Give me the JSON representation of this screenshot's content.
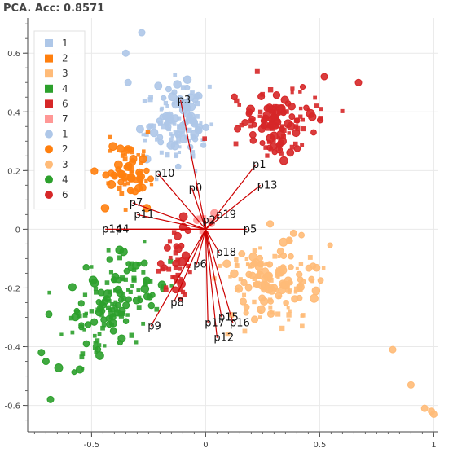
{
  "chart_data": {
    "type": "scatter",
    "title": "PCA. Acc: 0.8571",
    "xlabel": "",
    "ylabel": "",
    "xlim": [
      -0.78,
      1.02
    ],
    "ylim": [
      -0.69,
      0.72
    ],
    "xticks": [
      -0.5,
      0,
      0.5,
      1
    ],
    "yticks": [
      -0.6,
      -0.4,
      -0.2,
      0,
      0.2,
      0.4,
      0.6
    ],
    "grid": true,
    "legend_position": "top-left",
    "legend": [
      {
        "label": "1",
        "marker": "square",
        "color": "#aec7e8"
      },
      {
        "label": "2",
        "marker": "square",
        "color": "#ff7f0e"
      },
      {
        "label": "3",
        "marker": "square",
        "color": "#ffbb78"
      },
      {
        "label": "4",
        "marker": "square",
        "color": "#2ca02c"
      },
      {
        "label": "6",
        "marker": "square",
        "color": "#d62728"
      },
      {
        "label": "7",
        "marker": "square",
        "color": "#ff9896"
      },
      {
        "label": "1",
        "marker": "circle",
        "color": "#aec7e8"
      },
      {
        "label": "2",
        "marker": "circle",
        "color": "#ff7f0e"
      },
      {
        "label": "3",
        "marker": "circle",
        "color": "#ffbb78"
      },
      {
        "label": "4",
        "marker": "circle",
        "color": "#2ca02c"
      },
      {
        "label": "6",
        "marker": "circle",
        "color": "#d62728"
      }
    ],
    "clusters": [
      {
        "class": "1",
        "color": "#aec7e8",
        "center": [
          -0.12,
          0.36
        ],
        "spread": [
          0.09,
          0.11
        ],
        "rotation_deg": -55,
        "n": 130
      },
      {
        "class": "2",
        "color": "#ff7f0e",
        "center": [
          -0.34,
          0.2
        ],
        "spread": [
          0.08,
          0.08
        ],
        "rotation_deg": 0,
        "n": 70
      },
      {
        "class": "3",
        "color": "#ffbb78",
        "center": [
          0.28,
          -0.17
        ],
        "spread": [
          0.15,
          0.11
        ],
        "rotation_deg": 0,
        "n": 150
      },
      {
        "class": "4",
        "color": "#2ca02c",
        "center": [
          -0.4,
          -0.26
        ],
        "spread": [
          0.1,
          0.17
        ],
        "rotation_deg": -50,
        "n": 150
      },
      {
        "class": "6",
        "color": "#d62728",
        "center": [
          0.3,
          0.37
        ],
        "spread": [
          0.13,
          0.08
        ],
        "rotation_deg": 0,
        "n": 130
      },
      {
        "class": "6",
        "color": "#d62728",
        "center": [
          -0.12,
          -0.12
        ],
        "spread": [
          0.05,
          0.08
        ],
        "rotation_deg": 0,
        "n": 40
      },
      {
        "class": "7",
        "color": "#ff9896",
        "center": [
          0.0,
          0.01
        ],
        "spread": [
          0.04,
          0.03
        ],
        "rotation_deg": 0,
        "n": 12
      }
    ],
    "outliers": [
      {
        "class": "3",
        "color": "#ffbb78",
        "points": [
          [
            0.82,
            -0.41
          ],
          [
            0.9,
            -0.53
          ],
          [
            0.96,
            -0.61
          ],
          [
            0.99,
            -0.62
          ],
          [
            1.0,
            -0.63
          ]
        ]
      },
      {
        "class": "6",
        "color": "#d62728",
        "points": [
          [
            0.52,
            0.52
          ],
          [
            0.67,
            0.5
          ]
        ]
      },
      {
        "class": "4",
        "color": "#2ca02c",
        "points": [
          [
            -0.72,
            -0.42
          ],
          [
            -0.68,
            -0.58
          ],
          [
            -0.7,
            -0.45
          ]
        ]
      },
      {
        "class": "1",
        "color": "#aec7e8",
        "points": [
          [
            -0.28,
            0.67
          ],
          [
            -0.35,
            0.6
          ],
          [
            -0.34,
            0.5
          ]
        ]
      }
    ],
    "loadings": [
      {
        "name": "p0",
        "x": -0.06,
        "y": 0.14
      },
      {
        "name": "p1",
        "x": 0.22,
        "y": 0.22
      },
      {
        "name": "p3",
        "x": -0.11,
        "y": 0.44
      },
      {
        "name": "p4",
        "x": -0.38,
        "y": 0.0
      },
      {
        "name": "p5",
        "x": 0.18,
        "y": 0.0
      },
      {
        "name": "p6",
        "x": -0.04,
        "y": -0.12
      },
      {
        "name": "p7",
        "x": -0.32,
        "y": 0.09
      },
      {
        "name": "p8",
        "x": -0.14,
        "y": -0.25
      },
      {
        "name": "p9",
        "x": -0.24,
        "y": -0.33
      },
      {
        "name": "p10",
        "x": -0.21,
        "y": 0.19
      },
      {
        "name": "p11",
        "x": -0.3,
        "y": 0.05
      },
      {
        "name": "p12",
        "x": 0.05,
        "y": -0.37
      },
      {
        "name": "p13",
        "x": 0.24,
        "y": 0.15
      },
      {
        "name": "p14",
        "x": -0.44,
        "y": 0.0
      },
      {
        "name": "p15",
        "x": 0.07,
        "y": -0.3
      },
      {
        "name": "p16",
        "x": 0.12,
        "y": -0.32
      },
      {
        "name": "p17",
        "x": 0.01,
        "y": -0.32
      },
      {
        "name": "p18",
        "x": 0.06,
        "y": -0.08
      },
      {
        "name": "p19",
        "x": 0.06,
        "y": 0.05
      },
      {
        "name": "p2",
        "x": 0.0,
        "y": 0.03
      }
    ]
  }
}
